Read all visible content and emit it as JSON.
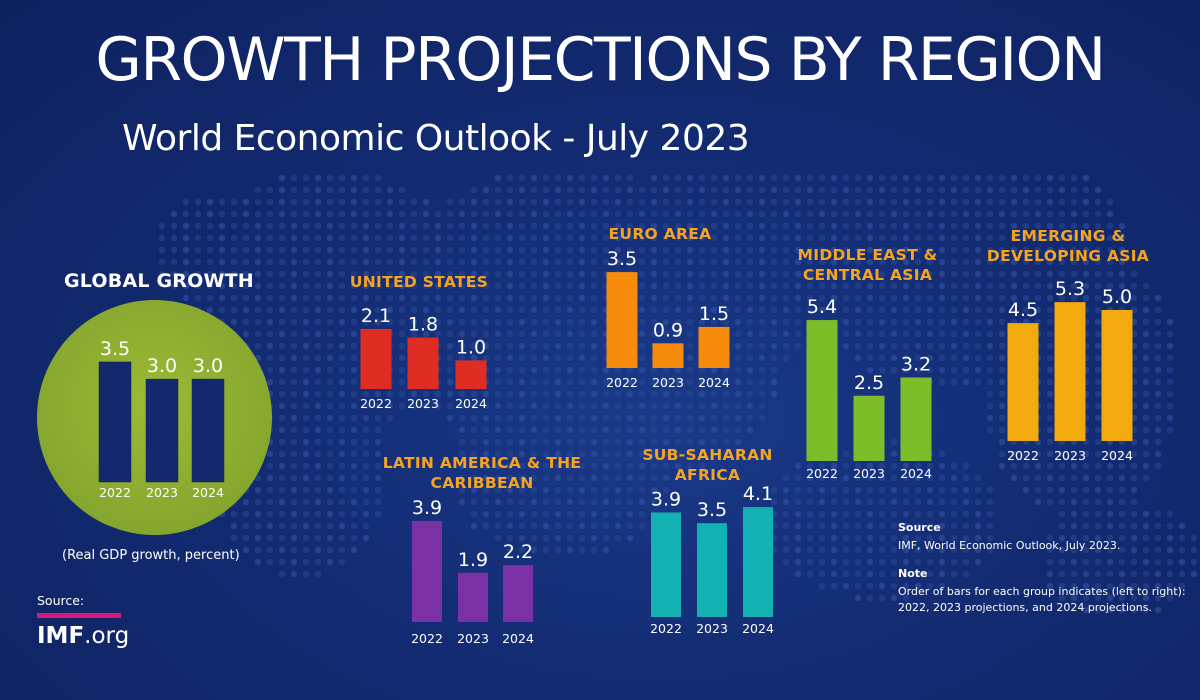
{
  "header": {
    "title": "GROWTH PROJECTIONS BY REGION",
    "subtitle": "World Economic Outlook - July 2023"
  },
  "global": {
    "title": "GLOBAL GROWTH",
    "ylabel": "(Real GDP growth, percent)"
  },
  "colors": {
    "background": "#132b72",
    "bar_global": "#14286e",
    "circle": "#86a72e",
    "us": "#e02d24",
    "euro": "#f78b0b",
    "me": "#7fbc2a",
    "asia": "#f3aa0f",
    "latam": "#7b31a6",
    "africa": "#14b1b4",
    "title_accent": "#f5a422"
  },
  "chart_data": [
    {
      "type": "bar",
      "id": "global",
      "title": "GLOBAL GROWTH",
      "categories": [
        "2022",
        "2023",
        "2024"
      ],
      "values": [
        3.5,
        3.0,
        3.0
      ],
      "value_labels": [
        "3.5",
        "3.0",
        "3.0"
      ],
      "ylabel": "Real GDP growth, percent"
    },
    {
      "type": "bar",
      "id": "us",
      "title": "UNITED STATES",
      "categories": [
        "2022",
        "2023",
        "2024"
      ],
      "values": [
        2.1,
        1.8,
        1.0
      ],
      "value_labels": [
        "2.1",
        "1.8",
        "1.0"
      ]
    },
    {
      "type": "bar",
      "id": "euro",
      "title": "EURO AREA",
      "categories": [
        "2022",
        "2023",
        "2024"
      ],
      "values": [
        3.5,
        0.9,
        1.5
      ],
      "value_labels": [
        "3.5",
        "0.9",
        "1.5"
      ]
    },
    {
      "type": "bar",
      "id": "me",
      "title": "MIDDLE EAST & CENTRAL ASIA",
      "categories": [
        "2022",
        "2023",
        "2024"
      ],
      "values": [
        5.4,
        2.5,
        3.2
      ],
      "value_labels": [
        "5.4",
        "2.5",
        "3.2"
      ]
    },
    {
      "type": "bar",
      "id": "asia",
      "title": "EMERGING & DEVELOPING ASIA",
      "categories": [
        "2022",
        "2023",
        "2024"
      ],
      "values": [
        4.5,
        5.3,
        5.0
      ],
      "value_labels": [
        "4.5",
        "5.3",
        "5.0"
      ]
    },
    {
      "type": "bar",
      "id": "latam",
      "title": "LATIN AMERICA & THE CARIBBEAN",
      "categories": [
        "2022",
        "2023",
        "2024"
      ],
      "values": [
        3.9,
        1.9,
        2.2
      ],
      "value_labels": [
        "3.9",
        "1.9",
        "2.2"
      ]
    },
    {
      "type": "bar",
      "id": "africa",
      "title": "SUB-SAHARAN AFRICA",
      "categories": [
        "2022",
        "2023",
        "2024"
      ],
      "values": [
        3.9,
        3.5,
        4.1
      ],
      "value_labels": [
        "3.9",
        "3.5",
        "4.1"
      ]
    }
  ],
  "source_logo": {
    "label": "Source:",
    "brand": "IMF",
    "suffix": ".org"
  },
  "notes": {
    "source_heading": "Source",
    "source_text": "IMF, World Economic Outlook, July 2023.",
    "note_heading": "Note",
    "note_text": "Order of bars for each group indicates (left to right): 2022, 2023 projections, and 2024 projections."
  }
}
